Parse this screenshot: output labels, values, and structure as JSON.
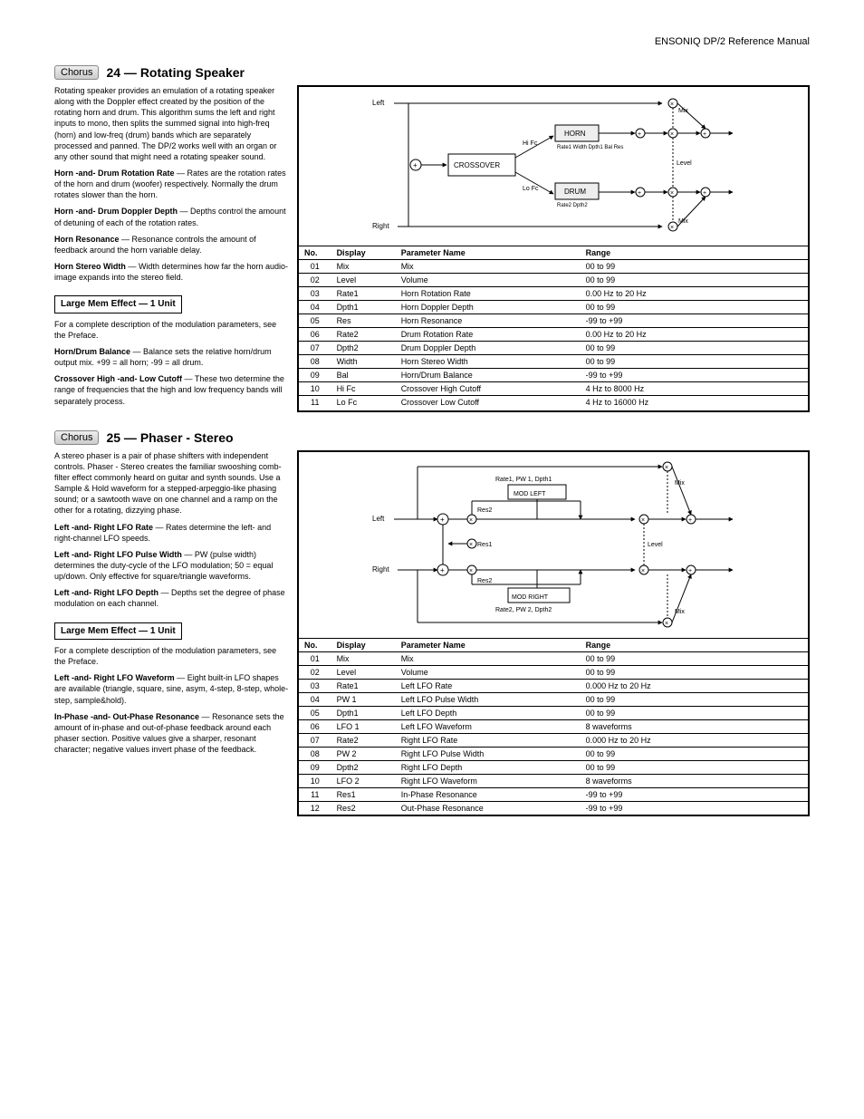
{
  "page_header": "ENSONIQ DP/2 Reference Manual",
  "effect1": {
    "tag": "Chorus",
    "title": "24 — Rotating Speaker",
    "diagram": {
      "left_in": "Left",
      "right_in": "Right",
      "crossover": "CROSSOVER",
      "hi_fc": "Hi Fc",
      "lo_fc": "Lo Fc",
      "horn": "HORN",
      "drum": "DRUM",
      "horn_params": "Rate1  Width\nDpth1  Bal\nRes",
      "drum_params": "Rate2\nDpth2",
      "level": "Level",
      "mix": "Mix"
    },
    "intro": "Rotating speaker provides an emulation of a rotating speaker along with the Doppler effect created by the position of the rotating horn and drum. This algorithm sums the left and right inputs to mono, then splits the summed signal into high-freq (horn) and low-freq (drum) bands which are separately processed and panned. The DP/2 works well with an organ or any other sound that might need a rotating speaker sound.",
    "lmem_title": "Large Mem Effect — 1 Unit",
    "param_note": "For a complete description of the modulation parameters, see the Preface.",
    "params": [
      {
        "num": "01",
        "disp": "Mix",
        "param": "Mix",
        "range": "00 to 99"
      },
      {
        "num": "02",
        "disp": "Level",
        "param": "Volume",
        "range": "00 to 99"
      },
      {
        "num": "03",
        "disp": "Rate1",
        "param": "Horn Rotation Rate",
        "range": "0.00 Hz to 20 Hz"
      },
      {
        "num": "04",
        "disp": "Dpth1",
        "param": "Horn Doppler Depth",
        "range": "00 to 99"
      },
      {
        "num": "05",
        "disp": "Res",
        "param": "Horn Resonance",
        "range": "-99 to +99"
      },
      {
        "num": "06",
        "disp": "Rate2",
        "param": "Drum Rotation Rate",
        "range": "0.00 Hz to 20 Hz"
      },
      {
        "num": "07",
        "disp": "Dpth2",
        "param": "Drum Doppler Depth",
        "range": "00 to 99"
      },
      {
        "num": "08",
        "disp": "Width",
        "param": "Horn Stereo Width",
        "range": "00 to 99"
      },
      {
        "num": "09",
        "disp": "Bal",
        "param": "Horn/Drum Balance",
        "range": "-99 to +99"
      },
      {
        "num": "10",
        "disp": "Hi Fc",
        "param": "Crossover High Cutoff",
        "range": "4 Hz to 8000 Hz"
      },
      {
        "num": "11",
        "disp": "Lo Fc",
        "param": "Crossover Low Cutoff",
        "range": "4 Hz to 16000 Hz"
      }
    ],
    "pdesc": [
      {
        "name": "Horn -and- Drum Rotation Rate",
        "text": "Rates are the rotation rates of the horn and drum (woofer) respectively. Normally the drum rotates slower than the horn."
      },
      {
        "name": "Horn -and- Drum Doppler Depth",
        "text": "Depths control the amount of detuning of each of the rotation rates."
      },
      {
        "name": "Horn Resonance",
        "text": "Resonance controls the amount of feedback around the horn variable delay."
      },
      {
        "name": "Horn Stereo Width",
        "text": "Width determines how far the horn audio-image expands into the stereo field."
      },
      {
        "name": "Horn/Drum Balance",
        "text": "Balance sets the relative horn/drum output mix. +99 = all horn; -99 = all drum."
      },
      {
        "name": "Crossover High -and- Low Cutoff",
        "text": "These two determine the range of frequencies that the high and low frequency bands will separately process."
      }
    ]
  },
  "effect2": {
    "tag": "Chorus",
    "title": "25 — Phaser - Stereo",
    "diagram": {
      "left_in": "Left",
      "right_in": "Right",
      "mod_left": "MOD LEFT",
      "mod_right": "MOD RIGHT",
      "top_params": "Rate1, PW 1, Dpth1",
      "bot_params": "Rate2, PW 2, Dpth2",
      "res1": "Res1",
      "res2": "Res2",
      "level": "Level",
      "mix": "Mix"
    },
    "intro": "A stereo phaser is a pair of phase shifters with independent controls. Phaser - Stereo creates the familiar swooshing comb-filter effect commonly heard on guitar and synth sounds. Use a Sample & Hold waveform for a stepped-arpeggio-like phasing sound; or a sawtooth wave on one channel and a ramp on the other for a rotating, dizzying phase.",
    "lmem_title": "Large Mem Effect — 1 Unit",
    "param_note": "For a complete description of the modulation parameters, see the Preface.",
    "params": [
      {
        "num": "01",
        "disp": "Mix",
        "param": "Mix",
        "range": "00 to 99"
      },
      {
        "num": "02",
        "disp": "Level",
        "param": "Volume",
        "range": "00 to 99"
      },
      {
        "num": "03",
        "disp": "Rate1",
        "param": "Left LFO Rate",
        "range": "0.000 Hz to 20 Hz"
      },
      {
        "num": "04",
        "disp": "PW 1",
        "param": "Left LFO Pulse Width",
        "range": "00 to 99"
      },
      {
        "num": "05",
        "disp": "Dpth1",
        "param": "Left LFO Depth",
        "range": "00 to 99"
      },
      {
        "num": "06",
        "disp": "LFO 1",
        "param": "Left LFO Waveform",
        "range": "8 waveforms"
      },
      {
        "num": "07",
        "disp": "Rate2",
        "param": "Right LFO Rate",
        "range": "0.000 Hz to 20 Hz"
      },
      {
        "num": "08",
        "disp": "PW 2",
        "param": "Right LFO Pulse Width",
        "range": "00 to 99"
      },
      {
        "num": "09",
        "disp": "Dpth2",
        "param": "Right LFO Depth",
        "range": "00 to 99"
      },
      {
        "num": "10",
        "disp": "LFO 2",
        "param": "Right LFO Waveform",
        "range": "8 waveforms"
      },
      {
        "num": "11",
        "disp": "Res1",
        "param": "In-Phase Resonance",
        "range": "-99 to +99"
      },
      {
        "num": "12",
        "disp": "Res2",
        "param": "Out-Phase Resonance",
        "range": "-99 to +99"
      }
    ],
    "pdesc": [
      {
        "name": "Left -and- Right LFO Rate",
        "text": "Rates determine the left- and right-channel LFO speeds."
      },
      {
        "name": "Left -and- Right LFO Pulse Width",
        "text": "PW (pulse width) determines the duty-cycle of the LFO modulation; 50 = equal up/down. Only effective for square/triangle waveforms."
      },
      {
        "name": "Left -and- Right LFO Depth",
        "text": "Depths set the degree of phase modulation on each channel."
      },
      {
        "name": "Left -and- Right LFO Waveform",
        "text": "Eight built-in LFO shapes are available (triangle, square, sine, asym, 4-step, 8-step, whole-step, sample&hold)."
      },
      {
        "name": "In-Phase -and- Out-Phase Resonance",
        "text": "Resonance sets the amount of in-phase and out-of-phase feedback around each phaser section. Positive values give a sharper, resonant character; negative values invert phase of the feedback."
      }
    ]
  }
}
